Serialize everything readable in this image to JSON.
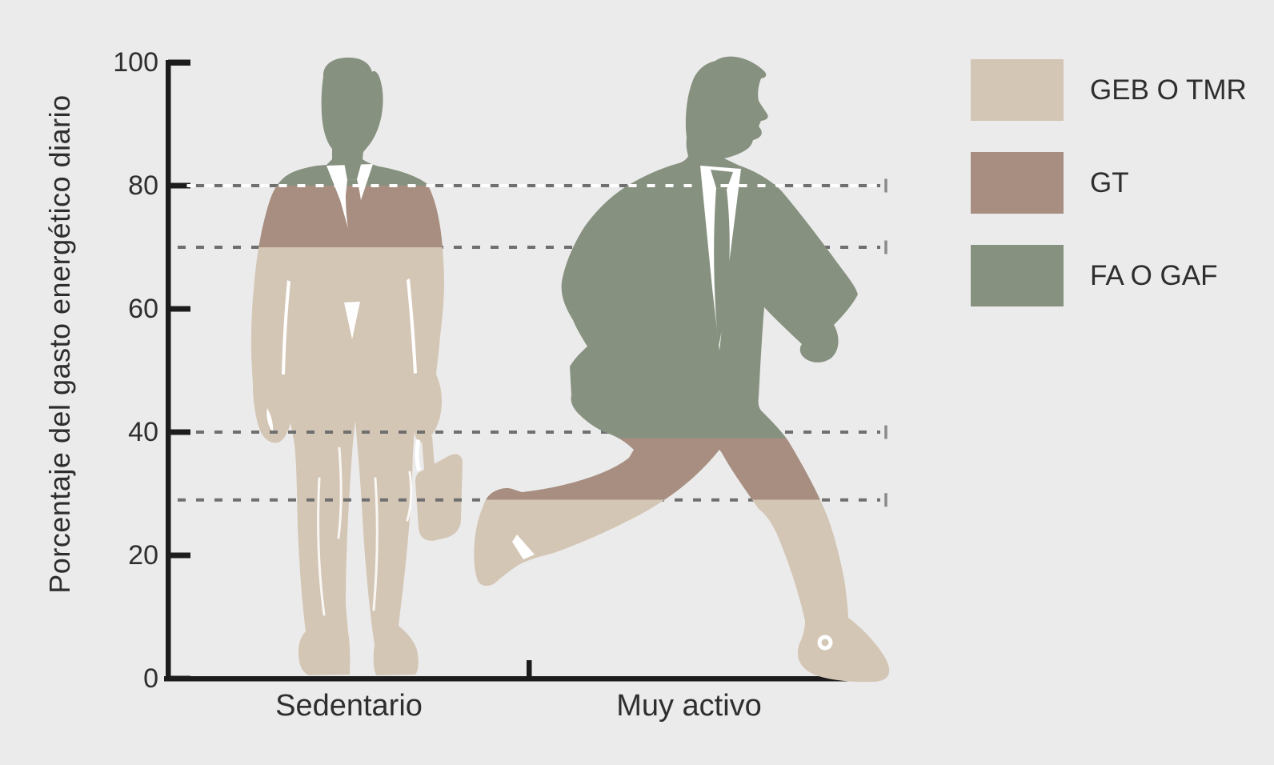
{
  "background_color": "#ebebeb",
  "chart_data": {
    "type": "bar",
    "variant": "stacked-pictorial-silhouettes",
    "title": "",
    "ylabel": "Porcentaje del gasto energético diario",
    "xlabel": "",
    "categories": [
      "Sedentario",
      "Muy activo"
    ],
    "series": [
      {
        "name": "GEB O TMR",
        "color": "#d4c6b5",
        "values": [
          70,
          29
        ]
      },
      {
        "name": "GT",
        "color": "#a78e80",
        "values": [
          10,
          10
        ]
      },
      {
        "name": "FA O GAF",
        "color": "#879180",
        "values": [
          20,
          61
        ]
      }
    ],
    "ylim": [
      0,
      100
    ],
    "yticks": [
      0,
      20,
      40,
      60,
      80,
      100
    ],
    "gridlines": [
      80,
      70,
      40,
      29
    ],
    "grid_style": "dashed",
    "legend_position": "right",
    "figures": [
      "standing businessman with briefcase",
      "running businessman"
    ]
  },
  "colors": {
    "axis": "#1c1c1c",
    "text": "#2e2e2e",
    "grid_dark": "#6f6f6f",
    "grid_white": "#ffffff",
    "grid_end_tick": "#8a8a8a"
  }
}
